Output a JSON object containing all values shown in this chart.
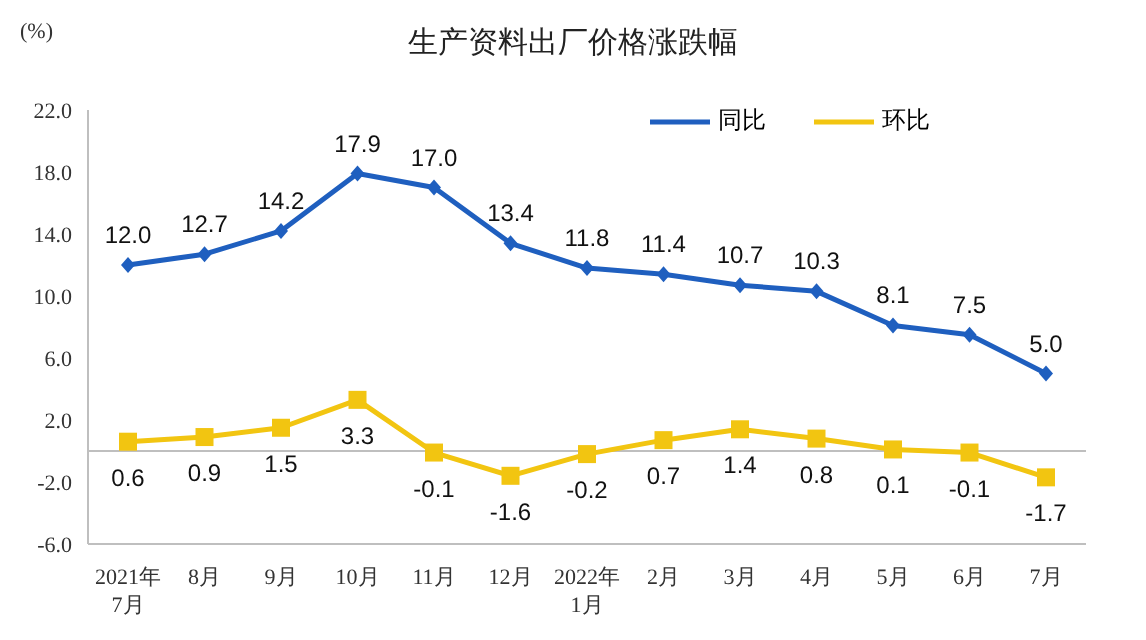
{
  "chart_data": {
    "type": "line",
    "title": "生产资料出厂价格涨跌幅",
    "ylabel": "(%)",
    "categories": [
      "2021年\n7月",
      "8月",
      "9月",
      "10月",
      "11月",
      "12月",
      "2022年\n1月",
      "2月",
      "3月",
      "4月",
      "5月",
      "6月",
      "7月"
    ],
    "series": [
      {
        "name": "同比",
        "color": "#1f5fbf",
        "marker": "diamond",
        "values": [
          12.0,
          12.7,
          14.2,
          17.9,
          17.0,
          13.4,
          11.8,
          11.4,
          10.7,
          10.3,
          8.1,
          7.5,
          5.0
        ],
        "value_labels": [
          "12.0",
          "12.7",
          "14.2",
          "17.9",
          "17.0",
          "13.4",
          "11.8",
          "11.4",
          "10.7",
          "10.3",
          "8.1",
          "7.5",
          "5.0"
        ]
      },
      {
        "name": "环比",
        "color": "#f2c511",
        "marker": "square",
        "values": [
          0.6,
          0.9,
          1.5,
          3.3,
          -0.1,
          -1.6,
          -0.2,
          0.7,
          1.4,
          0.8,
          0.1,
          -0.1,
          -1.7
        ],
        "value_labels": [
          "0.6",
          "0.9",
          "1.5",
          "3.3",
          "-0.1",
          "-1.6",
          "-0.2",
          "0.7",
          "1.4",
          "0.8",
          "0.1",
          "-0.1",
          "-1.7"
        ]
      }
    ],
    "ylim": [
      -6,
      22
    ],
    "yticks": [
      {
        "value": -6,
        "label": "-6.0"
      },
      {
        "value": -2,
        "label": "-2.0"
      },
      {
        "value": 2,
        "label": "2.0"
      },
      {
        "value": 6,
        "label": "6.0"
      },
      {
        "value": 10,
        "label": "10.0"
      },
      {
        "value": 14,
        "label": "14.0"
      },
      {
        "value": 18,
        "label": "18.0"
      },
      {
        "value": 22,
        "label": "22.0"
      }
    ],
    "ref_lines": [
      {
        "axis": "y",
        "value": 0,
        "label": null,
        "color": "#bfbfbf"
      }
    ],
    "grid": false,
    "legend": "top right",
    "line_style": "solid"
  }
}
